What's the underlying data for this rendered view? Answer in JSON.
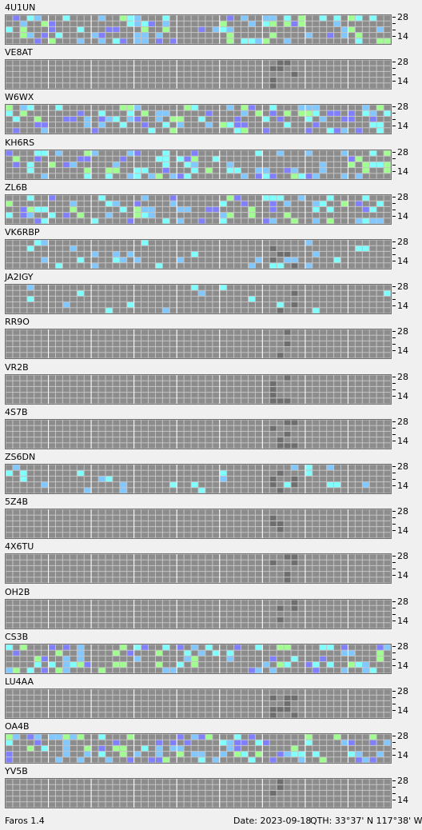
{
  "band_labels": {
    "high": "28",
    "low": "14"
  },
  "colors": {
    "grid_bg": "#a8a8a8",
    "cell": "#8c8c8c",
    "grid_line": "#c4c4c4",
    "hour_divider": "#ffffff",
    "heard_gray": "#6e6e6e",
    "cyan": "#80ffff",
    "light_blue": "#80c8ff",
    "green": "#a0ff90",
    "violet": "#8080ff"
  },
  "beacons": [
    {
      "call": "4U1UN"
    },
    {
      "call": "VE8AT"
    },
    {
      "call": "W6WX"
    },
    {
      "call": "KH6RS"
    },
    {
      "call": "ZL6B"
    },
    {
      "call": "VK6RBP"
    },
    {
      "call": "JA2IGY"
    },
    {
      "call": "RR9O"
    },
    {
      "call": "VR2B"
    },
    {
      "call": "4S7B"
    },
    {
      "call": "ZS6DN"
    },
    {
      "call": "5Z4B"
    },
    {
      "call": "4X6TU"
    },
    {
      "call": "OH2B"
    },
    {
      "call": "CS3B"
    },
    {
      "call": "LU4AA"
    },
    {
      "call": "OA4B"
    },
    {
      "call": "YV5B"
    }
  ],
  "status": {
    "app": "Faros 1.4",
    "date": "Date: 2023-09-18",
    "qth": "QTH: 33°37' N  117°38' W"
  }
}
